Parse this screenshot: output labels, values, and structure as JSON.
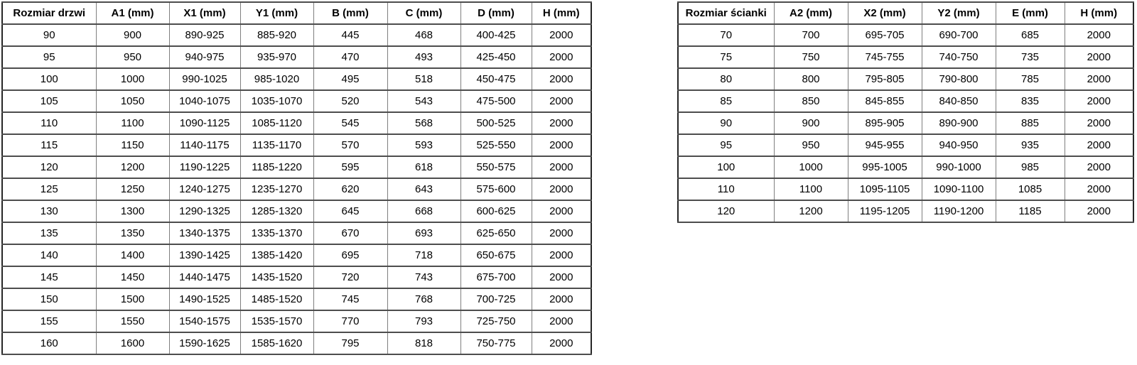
{
  "door_table": {
    "name": "door-sizes-table",
    "headers": [
      "Rozmiar drzwi",
      "A1 (mm)",
      "X1 (mm)",
      "Y1 (mm)",
      "B (mm)",
      "C (mm)",
      "D (mm)",
      "H (mm)"
    ],
    "rows": [
      [
        "90",
        "900",
        "890-925",
        "885-920",
        "445",
        "468",
        "400-425",
        "2000"
      ],
      [
        "95",
        "950",
        "940-975",
        "935-970",
        "470",
        "493",
        "425-450",
        "2000"
      ],
      [
        "100",
        "1000",
        "990-1025",
        "985-1020",
        "495",
        "518",
        "450-475",
        "2000"
      ],
      [
        "105",
        "1050",
        "1040-1075",
        "1035-1070",
        "520",
        "543",
        "475-500",
        "2000"
      ],
      [
        "110",
        "1100",
        "1090-1125",
        "1085-1120",
        "545",
        "568",
        "500-525",
        "2000"
      ],
      [
        "115",
        "1150",
        "1140-1175",
        "1135-1170",
        "570",
        "593",
        "525-550",
        "2000"
      ],
      [
        "120",
        "1200",
        "1190-1225",
        "1185-1220",
        "595",
        "618",
        "550-575",
        "2000"
      ],
      [
        "125",
        "1250",
        "1240-1275",
        "1235-1270",
        "620",
        "643",
        "575-600",
        "2000"
      ],
      [
        "130",
        "1300",
        "1290-1325",
        "1285-1320",
        "645",
        "668",
        "600-625",
        "2000"
      ],
      [
        "135",
        "1350",
        "1340-1375",
        "1335-1370",
        "670",
        "693",
        "625-650",
        "2000"
      ],
      [
        "140",
        "1400",
        "1390-1425",
        "1385-1420",
        "695",
        "718",
        "650-675",
        "2000"
      ],
      [
        "145",
        "1450",
        "1440-1475",
        "1435-1520",
        "720",
        "743",
        "675-700",
        "2000"
      ],
      [
        "150",
        "1500",
        "1490-1525",
        "1485-1520",
        "745",
        "768",
        "700-725",
        "2000"
      ],
      [
        "155",
        "1550",
        "1540-1575",
        "1535-1570",
        "770",
        "793",
        "725-750",
        "2000"
      ],
      [
        "160",
        "1600",
        "1590-1625",
        "1585-1620",
        "795",
        "818",
        "750-775",
        "2000"
      ]
    ]
  },
  "wall_table": {
    "name": "wall-panel-sizes-table",
    "headers": [
      "Rozmiar ścianki",
      "A2 (mm)",
      "X2 (mm)",
      "Y2 (mm)",
      "E (mm)",
      "H (mm)"
    ],
    "rows": [
      [
        "70",
        "700",
        "695-705",
        "690-700",
        "685",
        "2000"
      ],
      [
        "75",
        "750",
        "745-755",
        "740-750",
        "735",
        "2000"
      ],
      [
        "80",
        "800",
        "795-805",
        "790-800",
        "785",
        "2000"
      ],
      [
        "85",
        "850",
        "845-855",
        "840-850",
        "835",
        "2000"
      ],
      [
        "90",
        "900",
        "895-905",
        "890-900",
        "885",
        "2000"
      ],
      [
        "95",
        "950",
        "945-955",
        "940-950",
        "935",
        "2000"
      ],
      [
        "100",
        "1000",
        "995-1005",
        "990-1000",
        "985",
        "2000"
      ],
      [
        "110",
        "1100",
        "1095-1105",
        "1090-1100",
        "1085",
        "2000"
      ],
      [
        "120",
        "1200",
        "1195-1205",
        "1190-1200",
        "1185",
        "2000"
      ]
    ]
  }
}
